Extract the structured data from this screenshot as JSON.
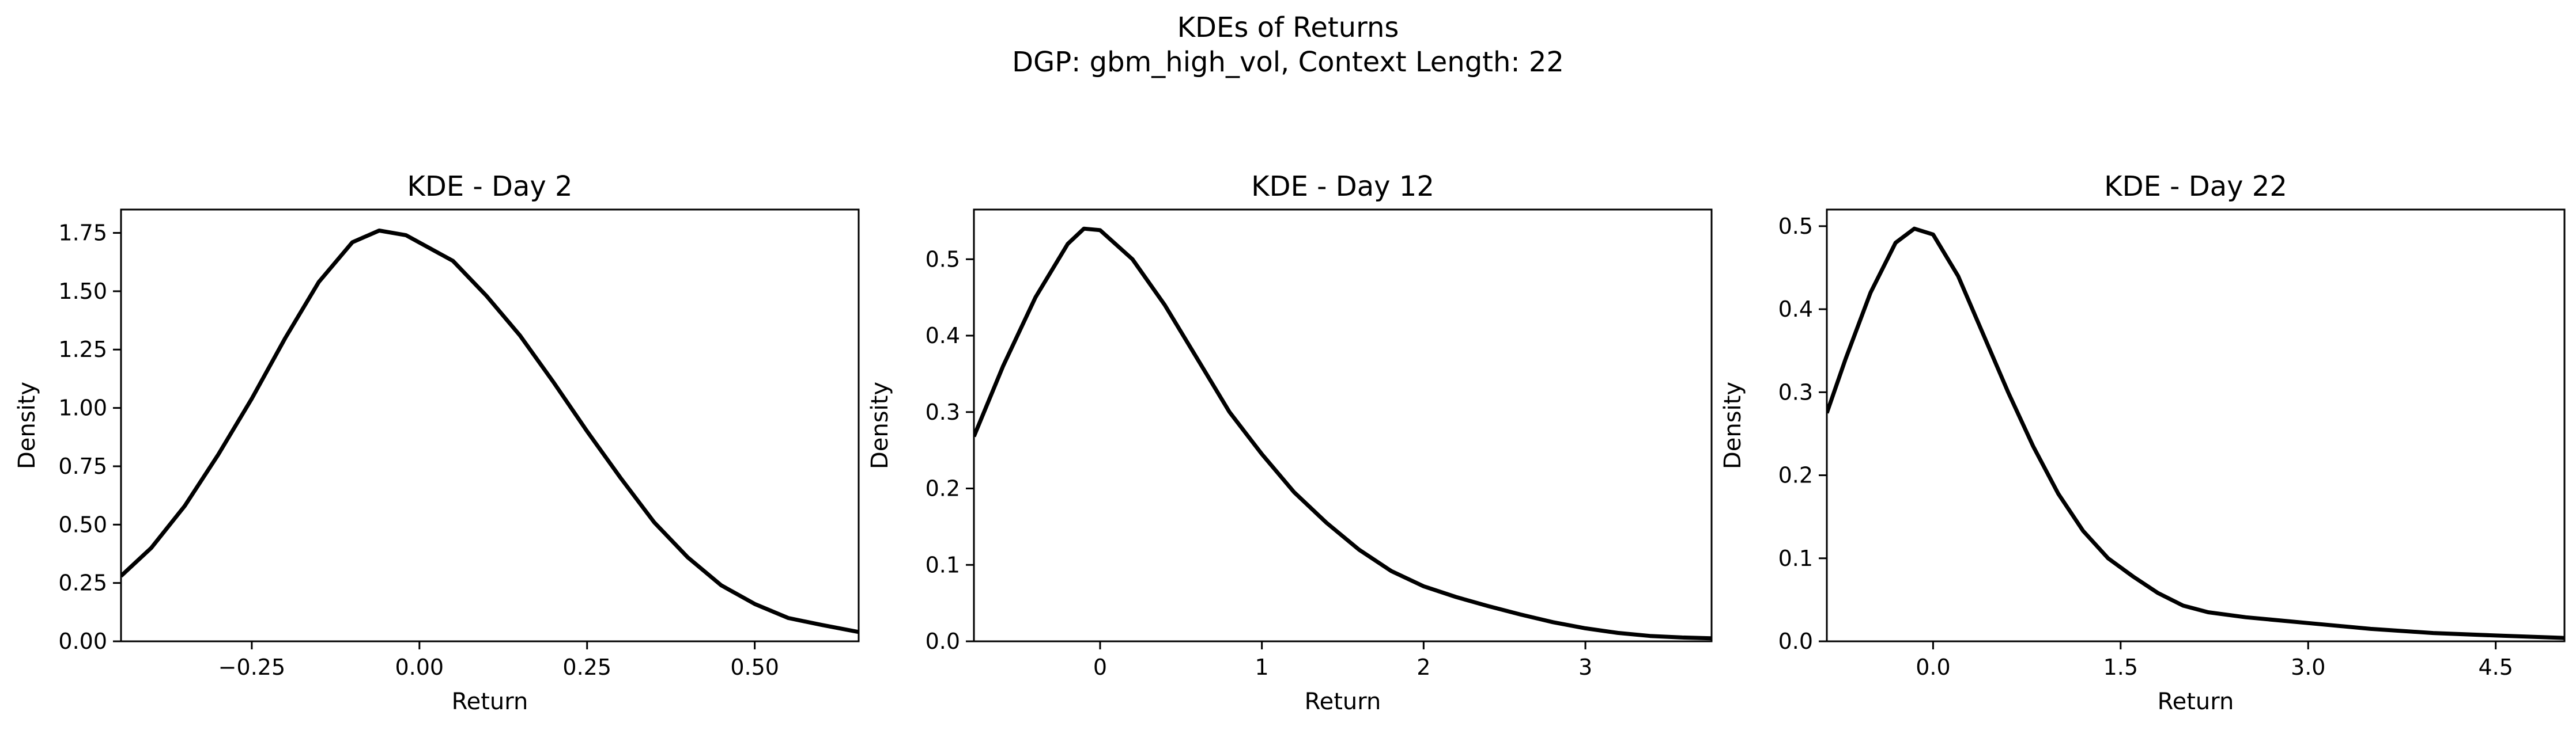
{
  "figure": {
    "title_line1": "KDEs of Returns",
    "title_line2": "DGP: gbm_high_vol, Context Length: 22"
  },
  "colors": {
    "line": "#000000",
    "axes": "#000000",
    "background": "#ffffff"
  },
  "chart_data": [
    {
      "type": "line",
      "title": "KDE - Day 2",
      "xlabel": "Return",
      "ylabel": "Density",
      "xlim": [
        -0.445,
        0.655
      ],
      "ylim": [
        0,
        1.85
      ],
      "xticks": [
        -0.25,
        0.0,
        0.25,
        0.5
      ],
      "xtick_labels": [
        "−0.25",
        "0.00",
        "0.25",
        "0.50"
      ],
      "yticks": [
        0,
        0.25,
        0.5,
        0.75,
        1.0,
        1.25,
        1.5,
        1.75
      ],
      "ytick_labels": [
        "0.00",
        "0.25",
        "0.50",
        "0.75",
        "1.00",
        "1.25",
        "1.50",
        "1.75"
      ],
      "grid": false,
      "series": [
        {
          "x": [
            -0.445,
            -0.4,
            -0.35,
            -0.3,
            -0.25,
            -0.2,
            -0.15,
            -0.1,
            -0.06,
            -0.02,
            0.05,
            0.1,
            0.15,
            0.2,
            0.25,
            0.3,
            0.35,
            0.4,
            0.45,
            0.5,
            0.55,
            0.6,
            0.655
          ],
          "y": [
            0.28,
            0.4,
            0.58,
            0.8,
            1.04,
            1.3,
            1.54,
            1.71,
            1.76,
            1.74,
            1.63,
            1.48,
            1.31,
            1.11,
            0.9,
            0.7,
            0.51,
            0.36,
            0.24,
            0.16,
            0.1,
            0.07,
            0.04
          ]
        }
      ]
    },
    {
      "type": "line",
      "title": "KDE - Day 12",
      "xlabel": "Return",
      "ylabel": "Density",
      "xlim": [
        -0.78,
        3.78
      ],
      "ylim": [
        0,
        0.565
      ],
      "xticks": [
        0,
        1,
        2,
        3
      ],
      "xtick_labels": [
        "0",
        "1",
        "2",
        "3"
      ],
      "yticks": [
        0,
        0.1,
        0.2,
        0.3,
        0.4,
        0.5
      ],
      "ytick_labels": [
        "0.0",
        "0.1",
        "0.2",
        "0.3",
        "0.4",
        "0.5"
      ],
      "grid": false,
      "series": [
        {
          "x": [
            -0.78,
            -0.6,
            -0.4,
            -0.2,
            -0.1,
            0.0,
            0.2,
            0.4,
            0.6,
            0.8,
            1.0,
            1.2,
            1.4,
            1.6,
            1.8,
            2.0,
            2.2,
            2.4,
            2.6,
            2.8,
            3.0,
            3.2,
            3.4,
            3.6,
            3.78
          ],
          "y": [
            0.268,
            0.36,
            0.45,
            0.52,
            0.54,
            0.538,
            0.5,
            0.44,
            0.37,
            0.3,
            0.245,
            0.195,
            0.155,
            0.12,
            0.092,
            0.072,
            0.058,
            0.046,
            0.035,
            0.025,
            0.017,
            0.011,
            0.007,
            0.005,
            0.004
          ]
        }
      ]
    },
    {
      "type": "line",
      "title": "KDE - Day 22",
      "xlabel": "Return",
      "ylabel": "Density",
      "xlim": [
        -0.85,
        5.05
      ],
      "ylim": [
        0,
        0.52
      ],
      "xticks": [
        0.0,
        1.5,
        3.0,
        4.5
      ],
      "xtick_labels": [
        "0.0",
        "1.5",
        "3.0",
        "4.5"
      ],
      "yticks": [
        0,
        0.1,
        0.2,
        0.3,
        0.4,
        0.5
      ],
      "ytick_labels": [
        "0.0",
        "0.1",
        "0.2",
        "0.3",
        "0.4",
        "0.5"
      ],
      "grid": false,
      "series": [
        {
          "x": [
            -0.85,
            -0.7,
            -0.5,
            -0.3,
            -0.15,
            0.0,
            0.2,
            0.4,
            0.6,
            0.8,
            1.0,
            1.2,
            1.4,
            1.6,
            1.8,
            2.0,
            2.2,
            2.5,
            3.0,
            3.5,
            4.0,
            4.5,
            5.05
          ],
          "y": [
            0.275,
            0.34,
            0.42,
            0.48,
            0.497,
            0.49,
            0.44,
            0.37,
            0.3,
            0.235,
            0.178,
            0.133,
            0.1,
            0.078,
            0.058,
            0.043,
            0.035,
            0.029,
            0.022,
            0.015,
            0.01,
            0.007,
            0.004
          ]
        }
      ]
    }
  ]
}
